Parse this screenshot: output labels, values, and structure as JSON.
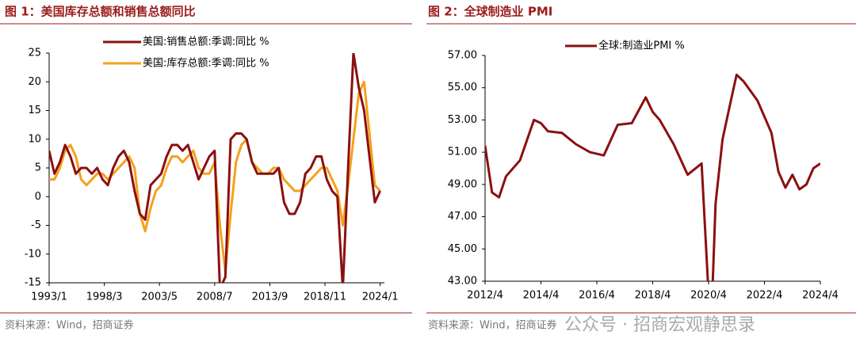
{
  "chart_data": [
    {
      "type": "line",
      "title": "图 1：美国库存总额和销售总额同比",
      "source": "资料来源：Wind，招商证券",
      "x": [
        1993.0,
        1993.5,
        1994.0,
        1994.5,
        1995.0,
        1995.5,
        1996.0,
        1996.5,
        1997.0,
        1997.5,
        1998.0,
        1998.5,
        1999.0,
        1999.5,
        2000.0,
        2000.5,
        2001.0,
        2001.5,
        2002.0,
        2002.5,
        2003.0,
        2003.5,
        2004.0,
        2004.5,
        2005.0,
        2005.5,
        2006.0,
        2006.5,
        2007.0,
        2007.5,
        2008.0,
        2008.5,
        2009.0,
        2009.5,
        2010.0,
        2010.5,
        2011.0,
        2011.5,
        2012.0,
        2012.5,
        2013.0,
        2013.5,
        2014.0,
        2014.5,
        2015.0,
        2015.5,
        2016.0,
        2016.5,
        2017.0,
        2017.5,
        2018.0,
        2018.5,
        2019.0,
        2019.5,
        2020.0,
        2020.5,
        2021.0,
        2021.5,
        2022.0,
        2022.5,
        2023.0,
        2023.5,
        2024.0
      ],
      "series": [
        {
          "name": "美国:销售总额:季调:同比 %",
          "color": "#8b1010",
          "values": [
            8,
            4,
            6,
            9,
            7,
            4,
            5,
            5,
            4,
            5,
            3,
            2,
            5,
            7,
            8,
            6,
            1,
            -3,
            -4,
            2,
            3,
            4,
            7,
            9,
            9,
            8,
            9,
            6,
            3,
            5,
            7,
            8,
            -16,
            -14,
            10,
            11,
            11,
            10,
            6,
            4,
            4,
            4,
            4,
            5,
            -1,
            -3,
            -3,
            -1,
            4,
            5,
            7,
            7,
            3,
            1,
            0,
            -16,
            5,
            25,
            19,
            15,
            7,
            -1,
            1
          ]
        },
        {
          "name": "美国:库存总额:季调:同比 %",
          "color": "#f5a11c",
          "values": [
            3,
            3,
            5,
            8,
            9,
            7,
            3,
            2,
            3,
            4,
            4,
            3,
            4,
            5,
            6,
            7,
            5,
            -3,
            -6,
            -2,
            1,
            2,
            5,
            7,
            7,
            6,
            7,
            8,
            5,
            4,
            4,
            6,
            -5,
            -13,
            -3,
            6,
            9,
            10,
            6,
            5,
            4,
            4,
            5,
            5,
            3,
            2,
            1,
            1,
            2,
            3,
            4,
            5,
            5,
            3,
            1,
            -5,
            2,
            10,
            18,
            20,
            11,
            2,
            1
          ]
        }
      ],
      "xlim": [
        1993.0,
        2024.4
      ],
      "xticks": [
        {
          "value": 1993.0,
          "label": "1993/1"
        },
        {
          "value": 1998.17,
          "label": "1998/3"
        },
        {
          "value": 2003.33,
          "label": "2003/5"
        },
        {
          "value": 2008.5,
          "label": "2008/7"
        },
        {
          "value": 2013.67,
          "label": "2013/9"
        },
        {
          "value": 2018.83,
          "label": "2018/11"
        },
        {
          "value": 2024.0,
          "label": "2024/1"
        }
      ],
      "ylim": [
        -15,
        25
      ],
      "yticks": [
        -15,
        -10,
        -5,
        0,
        5,
        10,
        15,
        20,
        25
      ]
    },
    {
      "type": "line",
      "title": "图 2：全球制造业 PMI",
      "source": "资料来源：Wind，招商证券",
      "watermark": "公众号 · 招商宏观静思录",
      "x": [
        2012.25,
        2012.5,
        2012.75,
        2013.0,
        2013.5,
        2014.0,
        2014.25,
        2014.5,
        2015.0,
        2015.5,
        2016.0,
        2016.5,
        2017.0,
        2017.5,
        2018.0,
        2018.25,
        2018.5,
        2019.0,
        2019.5,
        2020.0,
        2020.33,
        2020.5,
        2020.75,
        2021.0,
        2021.25,
        2021.5,
        2022.0,
        2022.5,
        2022.75,
        2023.0,
        2023.25,
        2023.5,
        2023.75,
        2024.0,
        2024.25
      ],
      "series": [
        {
          "name": "全球:制造业PMI %",
          "color": "#8b1010",
          "values": [
            51.4,
            48.5,
            48.2,
            49.5,
            50.5,
            53.0,
            52.8,
            52.3,
            52.2,
            51.5,
            51.0,
            50.8,
            52.7,
            52.8,
            54.4,
            53.5,
            53.0,
            51.5,
            49.6,
            50.3,
            39.6,
            47.8,
            51.8,
            53.8,
            55.8,
            55.4,
            54.2,
            52.2,
            49.8,
            48.8,
            49.6,
            48.7,
            49.0,
            50.0,
            50.3
          ]
        }
      ],
      "xlim": [
        2012.25,
        2024.25
      ],
      "xticks": [
        {
          "value": 2012.25,
          "label": "2012/4"
        },
        {
          "value": 2014.25,
          "label": "2014/4"
        },
        {
          "value": 2016.25,
          "label": "2016/4"
        },
        {
          "value": 2018.25,
          "label": "2018/4"
        },
        {
          "value": 2020.25,
          "label": "2020/4"
        },
        {
          "value": 2022.25,
          "label": "2022/4"
        },
        {
          "value": 2024.25,
          "label": "2024/4"
        }
      ],
      "ylim": [
        43,
        57
      ],
      "yticks": [
        {
          "value": 43,
          "label": "43.00"
        },
        {
          "value": 45,
          "label": "45.00"
        },
        {
          "value": 47,
          "label": "47.00"
        },
        {
          "value": 49,
          "label": "49.00"
        },
        {
          "value": 51,
          "label": "51.00"
        },
        {
          "value": 53,
          "label": "53.00"
        },
        {
          "value": 55,
          "label": "55.00"
        },
        {
          "value": 57,
          "label": "57.00"
        }
      ]
    }
  ]
}
